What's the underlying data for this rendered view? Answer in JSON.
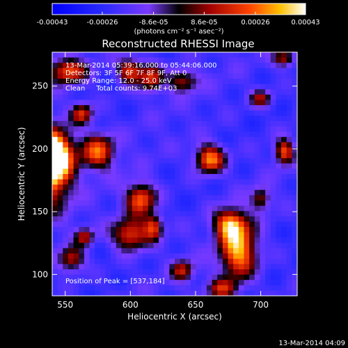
{
  "chart_data": {
    "type": "heatmap",
    "title": "Reconstructed RHESSI Image",
    "xlabel": "Heliocentric X (arcsec)",
    "ylabel": "Heliocentric Y (arcsec)",
    "x_range": [
      540,
      728
    ],
    "y_range": [
      83,
      277
    ],
    "x_ticks": [
      "550",
      "600",
      "650",
      "700"
    ],
    "y_ticks": [
      "100",
      "150",
      "200",
      "250"
    ],
    "colorbar": {
      "range": [
        -0.00043,
        0.00043
      ],
      "tick_labels": [
        "-0.00043",
        "-0.00026",
        "-8.6e-05",
        "8.6e-05",
        "0.00026",
        "0.00043"
      ],
      "units": "(photons cm⁻² s⁻¹ asec⁻²)"
    },
    "annotations": [
      "13-Mar-2014 05:39:16.000 to 05:44:06.000",
      "Detectors: 3F 5F 6F 7F 8F 9F, Att 0",
      "Energy Range: 12.0 - 25.0 keV",
      "Clean     Total counts: 9.74E+03"
    ],
    "peak_label": "Position of Peak = [537,184]",
    "sources": [
      {
        "x": 537,
        "y": 184,
        "value": 0.00043,
        "sx": 12,
        "sy": 20
      },
      {
        "x": 541,
        "y": 196,
        "value": 0.00033,
        "sx": 10,
        "sy": 12
      },
      {
        "x": 552,
        "y": 262,
        "value": 0.00022,
        "sx": 10,
        "sy": 7
      },
      {
        "x": 600,
        "y": 262,
        "value": 0.00023,
        "sx": 7,
        "sy": 7
      },
      {
        "x": 616,
        "y": 256,
        "value": 0.00017,
        "sx": 6,
        "sy": 8
      },
      {
        "x": 640,
        "y": 254,
        "value": 0.00012,
        "sx": 8,
        "sy": 6
      },
      {
        "x": 575,
        "y": 198,
        "value": 0.00024,
        "sx": 9,
        "sy": 10
      },
      {
        "x": 563,
        "y": 228,
        "value": 0.00018,
        "sx": 6,
        "sy": 6
      },
      {
        "x": 661,
        "y": 192,
        "value": 0.00031,
        "sx": 8,
        "sy": 8
      },
      {
        "x": 608,
        "y": 160,
        "value": 0.00026,
        "sx": 8,
        "sy": 9
      },
      {
        "x": 600,
        "y": 132,
        "value": 0.00024,
        "sx": 10,
        "sy": 9
      },
      {
        "x": 618,
        "y": 138,
        "value": 0.00017,
        "sx": 5,
        "sy": 7
      },
      {
        "x": 683,
        "y": 119,
        "value": 0.00035,
        "sx": 10,
        "sy": 16
      },
      {
        "x": 676,
        "y": 140,
        "value": 0.00023,
        "sx": 8,
        "sy": 8
      },
      {
        "x": 555,
        "y": 112,
        "value": 0.00015,
        "sx": 7,
        "sy": 7
      },
      {
        "x": 565,
        "y": 130,
        "value": 0.00012,
        "sx": 5,
        "sy": 5
      },
      {
        "x": 670,
        "y": 88,
        "value": 0.00013,
        "sx": 8,
        "sy": 6
      },
      {
        "x": 718,
        "y": 198,
        "value": 0.00022,
        "sx": 5,
        "sy": 7
      },
      {
        "x": 718,
        "y": 272,
        "value": 0.00014,
        "sx": 6,
        "sy": 5
      },
      {
        "x": 700,
        "y": 240,
        "value": 0.0001,
        "sx": 6,
        "sy": 5
      },
      {
        "x": 640,
        "y": 103,
        "value": 0.00012,
        "sx": 6,
        "sy": 6
      },
      {
        "x": 700,
        "y": 160,
        "value": 0.0001,
        "sx": 5,
        "sy": 6
      }
    ]
  },
  "footer": {
    "timestamp": "13-Mar-2014 04:09"
  }
}
